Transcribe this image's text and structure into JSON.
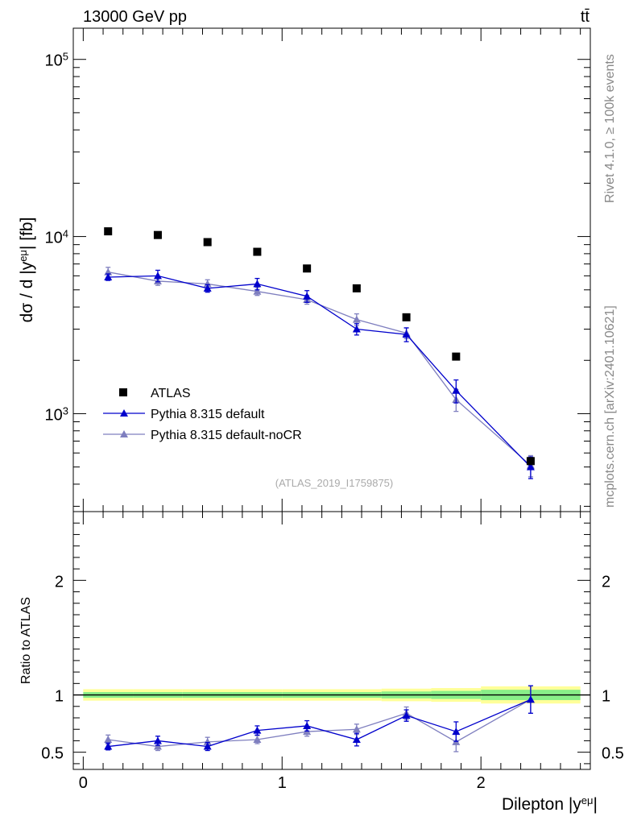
{
  "header": {
    "energy_label": "13000 GeV pp",
    "process_label": "tt̄"
  },
  "side_labels": {
    "rivet": "Rivet 4.1.0, ≥ 100k events",
    "source": "mcplots.cern.ch [arXiv:2401.10621]"
  },
  "chart_data": [
    {
      "type": "scatter",
      "name": "main",
      "title": "",
      "ylabel": "dσ / d |y^eμ| [fb]",
      "yscale": "log",
      "ylim": [
        280,
        150000
      ],
      "xlim": [
        -0.05,
        2.55
      ],
      "yticks_major": [
        1000,
        10000,
        100000
      ],
      "yticks_labels": [
        "10^3",
        "10^4",
        "10^5"
      ],
      "analysis_label": "(ATLAS_2019_I1759875)",
      "x": [
        0.125,
        0.375,
        0.625,
        0.875,
        1.125,
        1.375,
        1.625,
        1.875,
        2.25
      ],
      "bin_edges": [
        0,
        0.25,
        0.5,
        0.75,
        1.0,
        1.25,
        1.5,
        1.75,
        2.0,
        2.5
      ],
      "series": [
        {
          "name": "ATLAS",
          "color": "#000000",
          "marker": "square",
          "values": [
            10700,
            10200,
            9300,
            8200,
            6600,
            5100,
            3500,
            2100,
            540
          ]
        },
        {
          "name": "Pythia 8.315 default",
          "color": "#0000cc",
          "marker": "triangle",
          "values": [
            5900,
            6000,
            5100,
            5400,
            4600,
            3000,
            2800,
            1350,
            500
          ],
          "errors": [
            250,
            450,
            250,
            400,
            350,
            220,
            250,
            200,
            70
          ]
        },
        {
          "name": "Pythia 8.315 default-noCR",
          "color": "#7f7fbf",
          "marker": "triangle",
          "values": [
            6300,
            5600,
            5400,
            4900,
            4400,
            3400,
            2850,
            1200,
            510
          ],
          "errors": [
            400,
            300,
            300,
            250,
            250,
            260,
            200,
            170,
            70
          ]
        }
      ]
    },
    {
      "type": "scatter",
      "name": "ratio",
      "ylabel": "Ratio to ATLAS",
      "xlabel": "Dilepton |y^eμ|",
      "ylim": [
        0.35,
        2.6
      ],
      "xlim": [
        -0.05,
        2.55
      ],
      "yticks_major": [
        0.5,
        1,
        2
      ],
      "yticks_labels": [
        "0.5",
        "1",
        "2"
      ],
      "xticks_major": [
        0,
        1,
        2
      ],
      "xticks_labels": [
        "0",
        "1",
        "2"
      ],
      "x": [
        0.125,
        0.375,
        0.625,
        0.875,
        1.125,
        1.375,
        1.625,
        1.875,
        2.25
      ],
      "bin_edges": [
        0,
        0.25,
        0.5,
        0.75,
        1.0,
        1.25,
        1.5,
        1.75,
        2.0,
        2.5
      ],
      "band_stat": [
        0.025,
        0.025,
        0.025,
        0.025,
        0.025,
        0.025,
        0.03,
        0.035,
        0.045
      ],
      "band_total": [
        0.05,
        0.05,
        0.05,
        0.05,
        0.05,
        0.05,
        0.055,
        0.06,
        0.075
      ],
      "series": [
        {
          "name": "Pythia 8.315 default",
          "color": "#0000cc",
          "values": [
            0.55,
            0.6,
            0.55,
            0.69,
            0.73,
            0.61,
            0.82,
            0.68,
            0.96
          ],
          "errors": [
            0.03,
            0.04,
            0.035,
            0.04,
            0.045,
            0.055,
            0.05,
            0.085,
            0.12
          ]
        },
        {
          "name": "Pythia 8.315 default-noCR",
          "color": "#7f7fbf",
          "values": [
            0.61,
            0.55,
            0.59,
            0.61,
            0.68,
            0.7,
            0.84,
            0.59,
            0.96
          ],
          "errors": [
            0.04,
            0.035,
            0.04,
            0.035,
            0.04,
            0.045,
            0.055,
            0.085,
            0.12
          ]
        }
      ]
    }
  ]
}
